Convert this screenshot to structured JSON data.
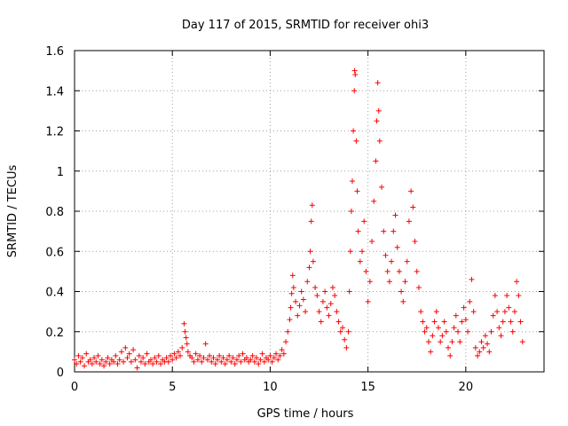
{
  "chart_data": {
    "type": "scatter",
    "title": "Day 117 of 2015, SRMTID for receiver ohi3",
    "xlabel": "GPS time / hours",
    "ylabel": "SRMTID / TECUs",
    "xlim": [
      0,
      24
    ],
    "ylim": [
      0,
      1.6
    ],
    "xticks": [
      0,
      5,
      10,
      15,
      20
    ],
    "yticks": [
      0,
      0.2,
      0.4,
      0.6,
      0.8,
      1,
      1.2,
      1.4,
      1.6
    ],
    "xtick_labels": [
      "0",
      "5",
      "10",
      "15",
      "20"
    ],
    "ytick_labels": [
      "0",
      "0.2",
      "0.4",
      "0.6",
      "0.8",
      "1",
      "1.2",
      "1.4",
      "1.6"
    ],
    "grid": true,
    "marker": "+",
    "color": "#ff0000",
    "series": [
      {
        "name": "SRMTID",
        "points": [
          [
            0.0,
            0.06
          ],
          [
            0.1,
            0.04
          ],
          [
            0.2,
            0.08
          ],
          [
            0.3,
            0.05
          ],
          [
            0.4,
            0.07
          ],
          [
            0.5,
            0.03
          ],
          [
            0.6,
            0.09
          ],
          [
            0.7,
            0.05
          ],
          [
            0.8,
            0.06
          ],
          [
            0.9,
            0.04
          ],
          [
            1.0,
            0.07
          ],
          [
            1.1,
            0.05
          ],
          [
            1.2,
            0.08
          ],
          [
            1.3,
            0.04
          ],
          [
            1.4,
            0.06
          ],
          [
            1.5,
            0.03
          ],
          [
            1.6,
            0.05
          ],
          [
            1.7,
            0.07
          ],
          [
            1.8,
            0.04
          ],
          [
            1.9,
            0.06
          ],
          [
            2.0,
            0.05
          ],
          [
            2.1,
            0.08
          ],
          [
            2.2,
            0.04
          ],
          [
            2.3,
            0.06
          ],
          [
            2.4,
            0.1
          ],
          [
            2.5,
            0.05
          ],
          [
            2.6,
            0.12
          ],
          [
            2.7,
            0.07
          ],
          [
            2.8,
            0.09
          ],
          [
            2.9,
            0.05
          ],
          [
            3.0,
            0.11
          ],
          [
            3.1,
            0.06
          ],
          [
            3.2,
            0.02
          ],
          [
            3.3,
            0.08
          ],
          [
            3.4,
            0.05
          ],
          [
            3.5,
            0.07
          ],
          [
            3.6,
            0.04
          ],
          [
            3.7,
            0.09
          ],
          [
            3.8,
            0.05
          ],
          [
            3.9,
            0.06
          ],
          [
            4.0,
            0.04
          ],
          [
            4.1,
            0.07
          ],
          [
            4.2,
            0.05
          ],
          [
            4.3,
            0.08
          ],
          [
            4.4,
            0.04
          ],
          [
            4.5,
            0.06
          ],
          [
            4.6,
            0.05
          ],
          [
            4.7,
            0.07
          ],
          [
            4.8,
            0.05
          ],
          [
            4.9,
            0.08
          ],
          [
            5.0,
            0.06
          ],
          [
            5.1,
            0.09
          ],
          [
            5.2,
            0.07
          ],
          [
            5.3,
            0.1
          ],
          [
            5.4,
            0.08
          ],
          [
            5.5,
            0.12
          ],
          [
            5.6,
            0.24
          ],
          [
            5.65,
            0.2
          ],
          [
            5.7,
            0.17
          ],
          [
            5.75,
            0.14
          ],
          [
            5.8,
            0.1
          ],
          [
            5.9,
            0.08
          ],
          [
            6.0,
            0.07
          ],
          [
            6.1,
            0.05
          ],
          [
            6.2,
            0.09
          ],
          [
            6.3,
            0.06
          ],
          [
            6.4,
            0.08
          ],
          [
            6.5,
            0.05
          ],
          [
            6.6,
            0.07
          ],
          [
            6.7,
            0.14
          ],
          [
            6.8,
            0.06
          ],
          [
            6.9,
            0.08
          ],
          [
            7.0,
            0.05
          ],
          [
            7.1,
            0.07
          ],
          [
            7.2,
            0.04
          ],
          [
            7.3,
            0.06
          ],
          [
            7.4,
            0.08
          ],
          [
            7.5,
            0.05
          ],
          [
            7.6,
            0.07
          ],
          [
            7.7,
            0.04
          ],
          [
            7.8,
            0.06
          ],
          [
            7.9,
            0.08
          ],
          [
            8.0,
            0.05
          ],
          [
            8.1,
            0.07
          ],
          [
            8.2,
            0.04
          ],
          [
            8.3,
            0.06
          ],
          [
            8.4,
            0.08
          ],
          [
            8.5,
            0.05
          ],
          [
            8.6,
            0.09
          ],
          [
            8.7,
            0.06
          ],
          [
            8.8,
            0.07
          ],
          [
            8.9,
            0.05
          ],
          [
            9.0,
            0.06
          ],
          [
            9.1,
            0.08
          ],
          [
            9.2,
            0.05
          ],
          [
            9.3,
            0.07
          ],
          [
            9.4,
            0.04
          ],
          [
            9.5,
            0.06
          ],
          [
            9.6,
            0.09
          ],
          [
            9.7,
            0.05
          ],
          [
            9.8,
            0.07
          ],
          [
            9.9,
            0.06
          ],
          [
            10.0,
            0.08
          ],
          [
            10.1,
            0.05
          ],
          [
            10.2,
            0.07
          ],
          [
            10.3,
            0.09
          ],
          [
            10.4,
            0.06
          ],
          [
            10.5,
            0.08
          ],
          [
            10.6,
            0.11
          ],
          [
            10.7,
            0.09
          ],
          [
            10.8,
            0.15
          ],
          [
            10.9,
            0.2
          ],
          [
            11.0,
            0.26
          ],
          [
            11.05,
            0.32
          ],
          [
            11.1,
            0.39
          ],
          [
            11.15,
            0.48
          ],
          [
            11.2,
            0.42
          ],
          [
            11.3,
            0.35
          ],
          [
            11.4,
            0.28
          ],
          [
            11.5,
            0.33
          ],
          [
            11.6,
            0.4
          ],
          [
            11.7,
            0.36
          ],
          [
            11.8,
            0.3
          ],
          [
            11.9,
            0.45
          ],
          [
            12.0,
            0.52
          ],
          [
            12.05,
            0.6
          ],
          [
            12.1,
            0.75
          ],
          [
            12.15,
            0.83
          ],
          [
            12.2,
            0.55
          ],
          [
            12.3,
            0.42
          ],
          [
            12.4,
            0.38
          ],
          [
            12.5,
            0.3
          ],
          [
            12.6,
            0.25
          ],
          [
            12.7,
            0.35
          ],
          [
            12.8,
            0.4
          ],
          [
            12.9,
            0.32
          ],
          [
            13.0,
            0.28
          ],
          [
            13.1,
            0.34
          ],
          [
            13.2,
            0.42
          ],
          [
            13.3,
            0.38
          ],
          [
            13.4,
            0.3
          ],
          [
            13.5,
            0.25
          ],
          [
            13.6,
            0.2
          ],
          [
            13.7,
            0.22
          ],
          [
            13.8,
            0.16
          ],
          [
            13.9,
            0.12
          ],
          [
            14.0,
            0.2
          ],
          [
            14.05,
            0.4
          ],
          [
            14.1,
            0.6
          ],
          [
            14.15,
            0.8
          ],
          [
            14.2,
            0.95
          ],
          [
            14.25,
            1.2
          ],
          [
            14.3,
            1.4
          ],
          [
            14.32,
            1.5
          ],
          [
            14.35,
            1.48
          ],
          [
            14.4,
            1.15
          ],
          [
            14.45,
            0.9
          ],
          [
            14.5,
            0.7
          ],
          [
            14.6,
            0.55
          ],
          [
            14.7,
            0.6
          ],
          [
            14.8,
            0.75
          ],
          [
            14.9,
            0.5
          ],
          [
            15.0,
            0.35
          ],
          [
            15.1,
            0.45
          ],
          [
            15.2,
            0.65
          ],
          [
            15.3,
            0.85
          ],
          [
            15.4,
            1.05
          ],
          [
            15.45,
            1.25
          ],
          [
            15.5,
            1.44
          ],
          [
            15.55,
            1.3
          ],
          [
            15.6,
            1.15
          ],
          [
            15.7,
            0.92
          ],
          [
            15.8,
            0.7
          ],
          [
            15.9,
            0.58
          ],
          [
            16.0,
            0.5
          ],
          [
            16.1,
            0.45
          ],
          [
            16.2,
            0.55
          ],
          [
            16.3,
            0.7
          ],
          [
            16.4,
            0.78
          ],
          [
            16.5,
            0.62
          ],
          [
            16.6,
            0.5
          ],
          [
            16.7,
            0.4
          ],
          [
            16.8,
            0.35
          ],
          [
            16.9,
            0.45
          ],
          [
            17.0,
            0.55
          ],
          [
            17.1,
            0.75
          ],
          [
            17.2,
            0.9
          ],
          [
            17.3,
            0.82
          ],
          [
            17.4,
            0.65
          ],
          [
            17.5,
            0.5
          ],
          [
            17.6,
            0.42
          ],
          [
            17.7,
            0.3
          ],
          [
            17.8,
            0.25
          ],
          [
            17.9,
            0.2
          ],
          [
            18.0,
            0.22
          ],
          [
            18.1,
            0.15
          ],
          [
            18.2,
            0.1
          ],
          [
            18.3,
            0.18
          ],
          [
            18.4,
            0.25
          ],
          [
            18.5,
            0.3
          ],
          [
            18.6,
            0.22
          ],
          [
            18.7,
            0.15
          ],
          [
            18.8,
            0.18
          ],
          [
            18.9,
            0.25
          ],
          [
            19.0,
            0.2
          ],
          [
            19.1,
            0.12
          ],
          [
            19.2,
            0.08
          ],
          [
            19.3,
            0.15
          ],
          [
            19.4,
            0.22
          ],
          [
            19.5,
            0.28
          ],
          [
            19.6,
            0.2
          ],
          [
            19.7,
            0.15
          ],
          [
            19.8,
            0.25
          ],
          [
            19.9,
            0.32
          ],
          [
            20.0,
            0.26
          ],
          [
            20.1,
            0.2
          ],
          [
            20.2,
            0.35
          ],
          [
            20.3,
            0.46
          ],
          [
            20.4,
            0.3
          ],
          [
            20.5,
            0.12
          ],
          [
            20.6,
            0.08
          ],
          [
            20.7,
            0.1
          ],
          [
            20.8,
            0.15
          ],
          [
            20.9,
            0.12
          ],
          [
            21.0,
            0.18
          ],
          [
            21.1,
            0.14
          ],
          [
            21.2,
            0.1
          ],
          [
            21.3,
            0.2
          ],
          [
            21.4,
            0.28
          ],
          [
            21.5,
            0.38
          ],
          [
            21.6,
            0.3
          ],
          [
            21.7,
            0.22
          ],
          [
            21.8,
            0.18
          ],
          [
            21.9,
            0.25
          ],
          [
            22.0,
            0.3
          ],
          [
            22.1,
            0.38
          ],
          [
            22.2,
            0.32
          ],
          [
            22.3,
            0.25
          ],
          [
            22.4,
            0.2
          ],
          [
            22.5,
            0.3
          ],
          [
            22.6,
            0.45
          ],
          [
            22.7,
            0.38
          ],
          [
            22.8,
            0.25
          ],
          [
            22.9,
            0.15
          ]
        ]
      }
    ]
  }
}
